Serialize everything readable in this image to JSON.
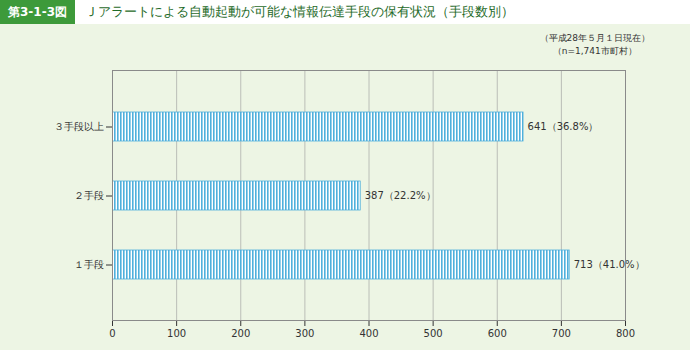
{
  "chart_data": {
    "type": "bar",
    "orientation": "horizontal",
    "title": "Ｊアラートによる自動起動が可能な情報伝達手段の保有状況（手段数別）",
    "annotations": [
      "第3-1-3図",
      "（平成28年５月１日現在）",
      "（n=1,741市町村）"
    ],
    "categories": [
      "３手段以上",
      "２手段",
      "１手段"
    ],
    "values": [
      641,
      387,
      713
    ],
    "value_labels": [
      "641（36.8%）",
      "387（22.2%）",
      "713（41.0%）"
    ],
    "data_labels": true,
    "color": "#4fb0dc",
    "xlim": [
      0,
      800
    ],
    "xticks": [
      0,
      100,
      200,
      300,
      400,
      500,
      600,
      700,
      800
    ],
    "grid": true
  }
}
